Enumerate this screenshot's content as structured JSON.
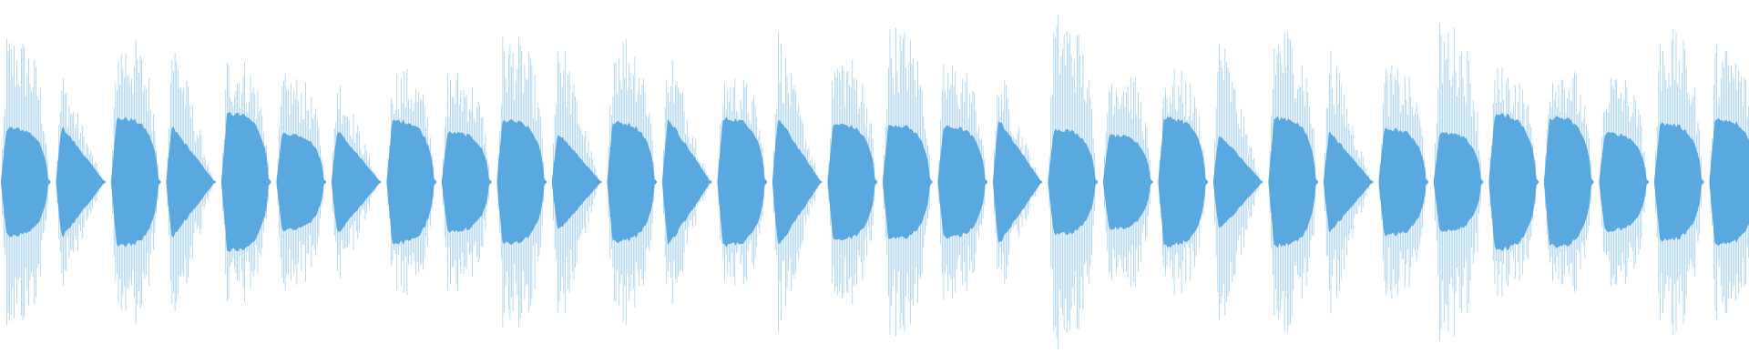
{
  "waveform": {
    "color": "#5aa8e0"
  }
}
